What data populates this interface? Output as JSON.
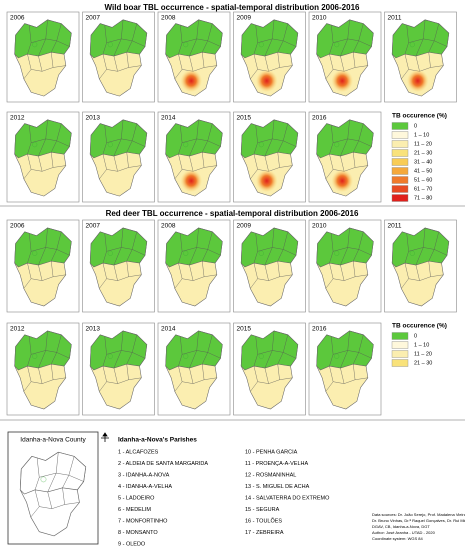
{
  "wild_boar": {
    "title": "Wild boar TBL occurrence - spatial-temporal distribution 2006-2016",
    "years": [
      "2006",
      "2007",
      "2008",
      "2009",
      "2010",
      "2011",
      "2012",
      "2013",
      "2014",
      "2015",
      "2016"
    ],
    "legend": {
      "title": "TB occurence (%)",
      "items": [
        {
          "label": "0",
          "color": "#5cc83c"
        },
        {
          "label": "1 – 10",
          "color": "#fff8dc"
        },
        {
          "label": "11 – 20",
          "color": "#fbeeb0"
        },
        {
          "label": "21 – 30",
          "color": "#f9e27a"
        },
        {
          "label": "31 – 40",
          "color": "#f8cc55"
        },
        {
          "label": "41 – 50",
          "color": "#f5a83a"
        },
        {
          "label": "51 – 60",
          "color": "#f07a2a"
        },
        {
          "label": "61 – 70",
          "color": "#e84a22"
        },
        {
          "label": "71 – 80",
          "color": "#e0201c"
        }
      ]
    }
  },
  "red_deer": {
    "title": "Red deer TBL occurrence - spatial-temporal distribution 2006-2016",
    "years": [
      "2006",
      "2007",
      "2008",
      "2009",
      "2010",
      "2011",
      "2012",
      "2013",
      "2014",
      "2015",
      "2016"
    ],
    "legend": {
      "title": "TB occurence (%)",
      "items": [
        {
          "label": "0",
          "color": "#5cc83c"
        },
        {
          "label": "1 – 10",
          "color": "#fff8dc"
        },
        {
          "label": "11 – 20",
          "color": "#fbeeb0"
        },
        {
          "label": "21 – 30",
          "color": "#f9e27a"
        }
      ]
    }
  },
  "inset": {
    "title": "Idanha-a-Nova County"
  },
  "parishes": {
    "title": "Idanha-a-Nova's Parishes",
    "items": [
      "1 - ALCAFOZES",
      "2 - ALDEIA DE SANTA MARGARIDA",
      "3 - IDANHA-A-NOVA",
      "4 - IDANHA-A-VELHA",
      "5 - LADOEIRO",
      "6 - MEDELIM",
      "7 - MONFORTINHO",
      "8 - MONSANTO",
      "9 - OLEDO",
      "10 - PENHA GARCIA",
      "11 - PROENÇA-A-VELHA",
      "12 - ROSMANINHAL",
      "13 - S. MIGUEL DE ACHA",
      "14 - SALVATERRA DO EXTREMO",
      "15 - SEGURA",
      "16 - TOULÕES",
      "17 - ZEBREIRA"
    ]
  },
  "sources": [
    "Data sources: Dr. João Serejo, Prof. Madalena Vieira-Pinto",
    "Dr. Bruno Vinhas, Dr.ª Raquel Gonçalves, Dr. Rui Miranda,",
    "DGAV, CB, Idanha-a-Nova, DGT",
    "Author: José Aranha - UTAD - 2020",
    "Coordinate system: WGS 84"
  ]
}
